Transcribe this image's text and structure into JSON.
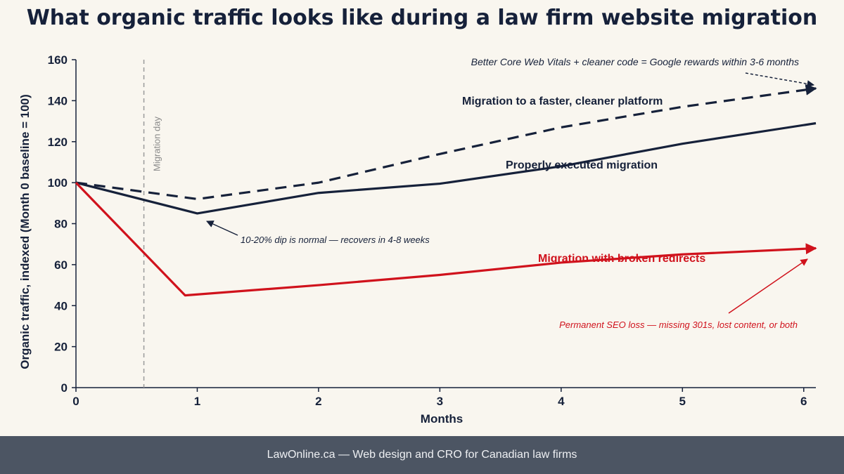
{
  "chart_data": {
    "type": "line",
    "title": "What organic traffic looks like during a law firm website migration",
    "xlabel": "Months",
    "ylabel": "Organic traffic, indexed (Month 0 baseline = 100)",
    "xlim": [
      0,
      6.1
    ],
    "ylim": [
      0,
      160
    ],
    "xticks": [
      0,
      1,
      2,
      3,
      4,
      5,
      6
    ],
    "yticks": [
      0,
      20,
      40,
      60,
      80,
      100,
      120,
      140,
      160
    ],
    "grid": false,
    "series": [
      {
        "name": "Migration to a faster, cleaner platform",
        "color": "#16213a",
        "style": "dashed",
        "x": [
          0,
          1,
          2,
          3,
          4,
          5,
          6.1
        ],
        "y": [
          100,
          92,
          100,
          114,
          127,
          137,
          146
        ]
      },
      {
        "name": "Properly executed migration",
        "color": "#16213a",
        "style": "solid",
        "x": [
          0,
          1,
          2,
          3,
          4,
          5,
          6.1
        ],
        "y": [
          100,
          85,
          95,
          99.5,
          108,
          119,
          129
        ]
      },
      {
        "name": "Migration with broken redirects",
        "color": "#d0121c",
        "style": "solid",
        "x": [
          0,
          0.9,
          2,
          3,
          4,
          5,
          6.1
        ],
        "y": [
          100,
          45,
          50,
          55,
          61,
          65,
          68
        ]
      }
    ],
    "vline": {
      "x": 0.56,
      "label": "Migration day",
      "color": "#9a9a9a"
    },
    "annotations": [
      {
        "text": "Better Core Web Vitals + cleaner code = Google rewards within 3-6 months",
        "color": "#16213a"
      },
      {
        "text": "10-20% dip is normal — recovers in 4-8 weeks",
        "color": "#16213a"
      },
      {
        "text": "Permanent SEO loss — missing 301s, lost content, or both",
        "color": "#d0121c"
      }
    ]
  },
  "footer": "LawOnline.ca — Web design and CRO for Canadian law firms"
}
